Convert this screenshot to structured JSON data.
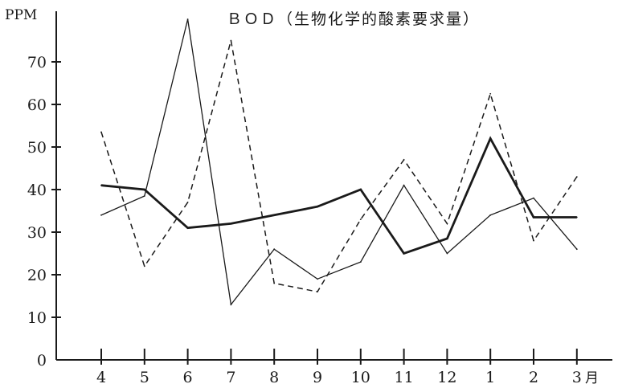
{
  "chart_data": {
    "type": "line",
    "title": "ＢＯＤ（生物化学的酸素要求量）",
    "ylabel": "PPM",
    "x_unit": "月",
    "categories": [
      "4",
      "5",
      "6",
      "7",
      "8",
      "9",
      "10",
      "11",
      "12",
      "1",
      "2",
      "3"
    ],
    "ylim": [
      0,
      80
    ],
    "yticks": [
      0,
      10,
      20,
      30,
      40,
      50,
      60,
      70
    ],
    "ytick_labels": [
      "0",
      "10",
      "20",
      "30",
      "40",
      "50",
      "60",
      "70"
    ],
    "grid": false,
    "series": [
      {
        "style": "solid-bold",
        "color": "#1a1a1a",
        "values": [
          41,
          40,
          31,
          32,
          34,
          36,
          40,
          25,
          28.5,
          52,
          33.5,
          33.5
        ]
      },
      {
        "style": "dashed",
        "color": "#1a1a1a",
        "values": [
          53.5,
          22,
          37,
          75,
          18,
          16,
          33,
          47,
          32,
          62.5,
          28,
          43
        ]
      },
      {
        "style": "solid-thin",
        "color": "#1a1a1a",
        "values": [
          34,
          38.5,
          80,
          13,
          26,
          19,
          23,
          41,
          25,
          34,
          38,
          26
        ]
      }
    ]
  }
}
